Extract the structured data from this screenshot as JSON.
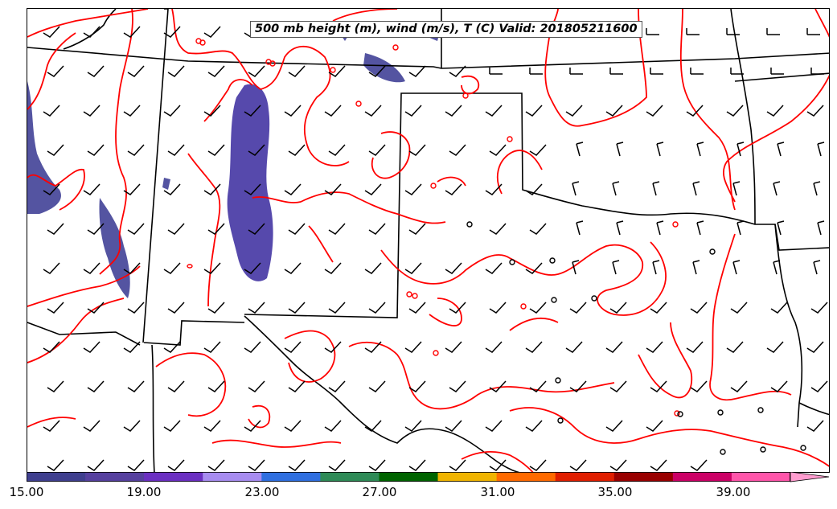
{
  "map": {
    "title": "500 mb height (m), wind (m/s), T (C) Valid: 201805211600",
    "region": "Southern Plains / Texas",
    "colors": {
      "temperature_contour": "#ff0000",
      "boundaries": "#000000",
      "wind_barbs": "#000000",
      "shading_low": "#4a4a9e",
      "shading_mid": "#5a3fb5"
    }
  },
  "colorbar": {
    "colors": [
      "#3f3f8f",
      "#56409f",
      "#6b2fc2",
      "#a78cf0",
      "#2f6fe0",
      "#2e8b57",
      "#006400",
      "#f0b400",
      "#ff6a00",
      "#e01e00",
      "#990000",
      "#cc0066",
      "#ff55aa",
      "#ff9ccf"
    ],
    "tick_labels": [
      "15.00",
      "19.00",
      "23.00",
      "27.00",
      "31.00",
      "35.00",
      "39.00"
    ],
    "extend": "max"
  }
}
